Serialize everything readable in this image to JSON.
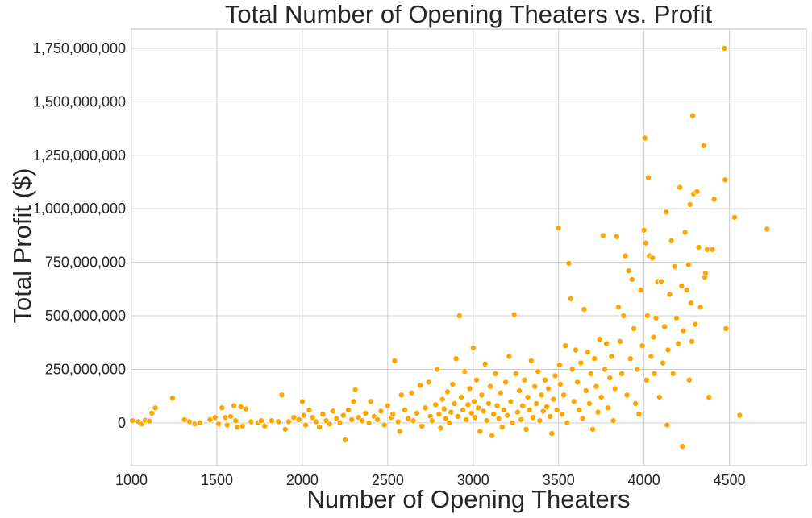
{
  "chart_data": {
    "type": "scatter",
    "title": "Total Number of Opening Theaters vs. Profit",
    "xlabel": "Number of Opening Theaters",
    "ylabel": "Total Profit ($)",
    "xlim": [
      1000,
      4950
    ],
    "ylim": [
      -200000000,
      1840000000
    ],
    "x_ticks": [
      1000,
      1500,
      2000,
      2500,
      3000,
      3500,
      4000,
      4500
    ],
    "x_tick_labels": [
      "1000",
      "1500",
      "2000",
      "2500",
      "3000",
      "3500",
      "4000",
      "4500"
    ],
    "y_ticks": [
      0,
      250000000,
      500000000,
      750000000,
      1000000000,
      1250000000,
      1500000000,
      1750000000
    ],
    "y_tick_labels": [
      "0",
      "250,000,000",
      "500,000,000",
      "750,000,000",
      "1,000,000,000",
      "1,250,000,000",
      "1,500,000,000",
      "1,750,000,000"
    ],
    "grid": true,
    "point_color": "#FFA500",
    "series": [
      {
        "points": [
          [
            1005,
            10000000
          ],
          [
            1040,
            5000000
          ],
          [
            1060,
            -5000000
          ],
          [
            1080,
            12000000
          ],
          [
            1105,
            8000000
          ],
          [
            1120,
            45000000
          ],
          [
            1140,
            70000000
          ],
          [
            1240,
            115000000
          ],
          [
            1310,
            15000000
          ],
          [
            1340,
            5000000
          ],
          [
            1370,
            -5000000
          ],
          [
            1400,
            0
          ],
          [
            1460,
            15000000
          ],
          [
            1490,
            25000000
          ],
          [
            1510,
            -5000000
          ],
          [
            1530,
            70000000
          ],
          [
            1550,
            25000000
          ],
          [
            1560,
            -10000000
          ],
          [
            1580,
            30000000
          ],
          [
            1600,
            80000000
          ],
          [
            1610,
            10000000
          ],
          [
            1620,
            -20000000
          ],
          [
            1640,
            75000000
          ],
          [
            1650,
            -15000000
          ],
          [
            1670,
            65000000
          ],
          [
            1700,
            5000000
          ],
          [
            1740,
            0
          ],
          [
            1760,
            10000000
          ],
          [
            1780,
            -15000000
          ],
          [
            1820,
            10000000
          ],
          [
            1860,
            5000000
          ],
          [
            1880,
            130000000
          ],
          [
            1900,
            -30000000
          ],
          [
            1920,
            5000000
          ],
          [
            1950,
            25000000
          ],
          [
            1980,
            15000000
          ],
          [
            2000,
            100000000
          ],
          [
            2010,
            35000000
          ],
          [
            2020,
            -10000000
          ],
          [
            2040,
            60000000
          ],
          [
            2060,
            25000000
          ],
          [
            2080,
            5000000
          ],
          [
            2100,
            -20000000
          ],
          [
            2120,
            40000000
          ],
          [
            2140,
            10000000
          ],
          [
            2160,
            -5000000
          ],
          [
            2180,
            55000000
          ],
          [
            2200,
            20000000
          ],
          [
            2220,
            0
          ],
          [
            2240,
            35000000
          ],
          [
            2250,
            -80000000
          ],
          [
            2270,
            60000000
          ],
          [
            2290,
            15000000
          ],
          [
            2300,
            100000000
          ],
          [
            2310,
            155000000
          ],
          [
            2330,
            25000000
          ],
          [
            2350,
            10000000
          ],
          [
            2370,
            45000000
          ],
          [
            2390,
            0
          ],
          [
            2400,
            100000000
          ],
          [
            2420,
            30000000
          ],
          [
            2440,
            15000000
          ],
          [
            2460,
            55000000
          ],
          [
            2480,
            -10000000
          ],
          [
            2500,
            80000000
          ],
          [
            2520,
            25000000
          ],
          [
            2530,
            40000000
          ],
          [
            2540,
            290000000
          ],
          [
            2560,
            5000000
          ],
          [
            2570,
            -40000000
          ],
          [
            2580,
            130000000
          ],
          [
            2600,
            60000000
          ],
          [
            2620,
            20000000
          ],
          [
            2640,
            140000000
          ],
          [
            2650,
            10000000
          ],
          [
            2670,
            45000000
          ],
          [
            2690,
            175000000
          ],
          [
            2700,
            -15000000
          ],
          [
            2720,
            70000000
          ],
          [
            2740,
            190000000
          ],
          [
            2750,
            30000000
          ],
          [
            2760,
            10000000
          ],
          [
            2780,
            85000000
          ],
          [
            2790,
            250000000
          ],
          [
            2800,
            40000000
          ],
          [
            2810,
            -25000000
          ],
          [
            2820,
            110000000
          ],
          [
            2830,
            65000000
          ],
          [
            2840,
            20000000
          ],
          [
            2850,
            145000000
          ],
          [
            2860,
            0
          ],
          [
            2870,
            50000000
          ],
          [
            2880,
            180000000
          ],
          [
            2890,
            90000000
          ],
          [
            2900,
            300000000
          ],
          [
            2910,
            30000000
          ],
          [
            2920,
            500000000
          ],
          [
            2930,
            120000000
          ],
          [
            2940,
            60000000
          ],
          [
            2950,
            240000000
          ],
          [
            2960,
            15000000
          ],
          [
            2970,
            85000000
          ],
          [
            2980,
            160000000
          ],
          [
            2990,
            45000000
          ],
          [
            3000,
            350000000
          ],
          [
            3005,
            100000000
          ],
          [
            3010,
            25000000
          ],
          [
            3020,
            200000000
          ],
          [
            3030,
            70000000
          ],
          [
            3040,
            -40000000
          ],
          [
            3050,
            130000000
          ],
          [
            3060,
            55000000
          ],
          [
            3070,
            275000000
          ],
          [
            3080,
            10000000
          ],
          [
            3090,
            90000000
          ],
          [
            3100,
            170000000
          ],
          [
            3110,
            -60000000
          ],
          [
            3120,
            40000000
          ],
          [
            3130,
            230000000
          ],
          [
            3140,
            80000000
          ],
          [
            3150,
            20000000
          ],
          [
            3160,
            140000000
          ],
          [
            3170,
            -20000000
          ],
          [
            3180,
            60000000
          ],
          [
            3190,
            190000000
          ],
          [
            3200,
            35000000
          ],
          [
            3210,
            310000000
          ],
          [
            3220,
            100000000
          ],
          [
            3230,
            0
          ],
          [
            3240,
            505000000
          ],
          [
            3250,
            230000000
          ],
          [
            3260,
            50000000
          ],
          [
            3270,
            150000000
          ],
          [
            3280,
            15000000
          ],
          [
            3290,
            80000000
          ],
          [
            3300,
            200000000
          ],
          [
            3310,
            -30000000
          ],
          [
            3320,
            120000000
          ],
          [
            3330,
            60000000
          ],
          [
            3340,
            290000000
          ],
          [
            3350,
            25000000
          ],
          [
            3360,
            170000000
          ],
          [
            3370,
            90000000
          ],
          [
            3380,
            240000000
          ],
          [
            3390,
            10000000
          ],
          [
            3400,
            130000000
          ],
          [
            3410,
            55000000
          ],
          [
            3420,
            200000000
          ],
          [
            3430,
            75000000
          ],
          [
            3440,
            160000000
          ],
          [
            3450,
            30000000
          ],
          [
            3460,
            -50000000
          ],
          [
            3470,
            110000000
          ],
          [
            3480,
            220000000
          ],
          [
            3490,
            60000000
          ],
          [
            3500,
            910000000
          ],
          [
            3505,
            270000000
          ],
          [
            3510,
            180000000
          ],
          [
            3520,
            40000000
          ],
          [
            3530,
            130000000
          ],
          [
            3540,
            360000000
          ],
          [
            3550,
            0
          ],
          [
            3560,
            745000000
          ],
          [
            3570,
            580000000
          ],
          [
            3580,
            250000000
          ],
          [
            3590,
            100000000
          ],
          [
            3600,
            340000000
          ],
          [
            3610,
            190000000
          ],
          [
            3620,
            60000000
          ],
          [
            3630,
            280000000
          ],
          [
            3640,
            20000000
          ],
          [
            3650,
            530000000
          ],
          [
            3660,
            150000000
          ],
          [
            3670,
            330000000
          ],
          [
            3680,
            90000000
          ],
          [
            3690,
            230000000
          ],
          [
            3700,
            -30000000
          ],
          [
            3710,
            300000000
          ],
          [
            3720,
            170000000
          ],
          [
            3730,
            50000000
          ],
          [
            3740,
            390000000
          ],
          [
            3750,
            120000000
          ],
          [
            3760,
            875000000
          ],
          [
            3770,
            250000000
          ],
          [
            3780,
            370000000
          ],
          [
            3790,
            70000000
          ],
          [
            3800,
            210000000
          ],
          [
            3810,
            310000000
          ],
          [
            3820,
            10000000
          ],
          [
            3830,
            160000000
          ],
          [
            3840,
            870000000
          ],
          [
            3850,
            540000000
          ],
          [
            3860,
            380000000
          ],
          [
            3870,
            230000000
          ],
          [
            3880,
            500000000
          ],
          [
            3890,
            780000000
          ],
          [
            3900,
            130000000
          ],
          [
            3910,
            710000000
          ],
          [
            3920,
            300000000
          ],
          [
            3930,
            670000000
          ],
          [
            3940,
            440000000
          ],
          [
            3950,
            90000000
          ],
          [
            3960,
            250000000
          ],
          [
            3970,
            40000000
          ],
          [
            3980,
            620000000
          ],
          [
            3990,
            360000000
          ],
          [
            4000,
            900000000
          ],
          [
            4005,
            1330000000
          ],
          [
            4010,
            840000000
          ],
          [
            4015,
            200000000
          ],
          [
            4020,
            500000000
          ],
          [
            4025,
            1145000000
          ],
          [
            4030,
            780000000
          ],
          [
            4040,
            310000000
          ],
          [
            4050,
            770000000
          ],
          [
            4055,
            400000000
          ],
          [
            4060,
            230000000
          ],
          [
            4070,
            490000000
          ],
          [
            4080,
            660000000
          ],
          [
            4090,
            120000000
          ],
          [
            4100,
            660000000
          ],
          [
            4110,
            280000000
          ],
          [
            4120,
            450000000
          ],
          [
            4130,
            985000000
          ],
          [
            4135,
            -10000000
          ],
          [
            4140,
            340000000
          ],
          [
            4150,
            600000000
          ],
          [
            4160,
            850000000
          ],
          [
            4170,
            230000000
          ],
          [
            4180,
            730000000
          ],
          [
            4190,
            490000000
          ],
          [
            4200,
            370000000
          ],
          [
            4210,
            1100000000
          ],
          [
            4220,
            640000000
          ],
          [
            4225,
            -110000000
          ],
          [
            4230,
            430000000
          ],
          [
            4240,
            890000000
          ],
          [
            4250,
            620000000
          ],
          [
            4260,
            740000000
          ],
          [
            4265,
            200000000
          ],
          [
            4270,
            1020000000
          ],
          [
            4275,
            560000000
          ],
          [
            4280,
            380000000
          ],
          [
            4285,
            1435000000
          ],
          [
            4290,
            1070000000
          ],
          [
            4300,
            460000000
          ],
          [
            4310,
            1080000000
          ],
          [
            4320,
            820000000
          ],
          [
            4330,
            540000000
          ],
          [
            4350,
            1295000000
          ],
          [
            4355,
            680000000
          ],
          [
            4360,
            700000000
          ],
          [
            4370,
            810000000
          ],
          [
            4380,
            120000000
          ],
          [
            4400,
            810000000
          ],
          [
            4410,
            1045000000
          ],
          [
            4470,
            1750000000
          ],
          [
            4475,
            1135000000
          ],
          [
            4480,
            440000000
          ],
          [
            4530,
            960000000
          ],
          [
            4560,
            35000000
          ],
          [
            4720,
            905000000
          ]
        ]
      }
    ]
  }
}
